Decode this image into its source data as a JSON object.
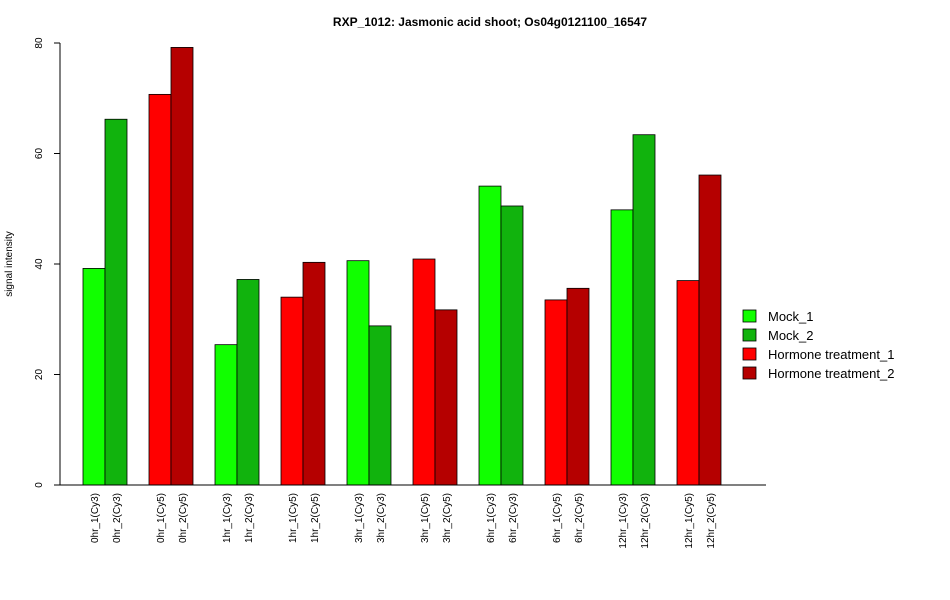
{
  "chart_data": {
    "type": "bar",
    "title": "RXP_1012: Jasmonic acid shoot; Os04g0121100_16547",
    "xlabel": "",
    "ylabel": "signal intensity",
    "ylim": [
      0,
      80
    ],
    "yticks": [
      0,
      20,
      40,
      60,
      80
    ],
    "categories": [
      "0hr_1(Cy3)",
      "0hr_2(Cy3)",
      "0hr_1(Cy5)",
      "0hr_2(Cy5)",
      "1hr_1(Cy3)",
      "1hr_2(Cy3)",
      "1hr_1(Cy5)",
      "1hr_2(Cy5)",
      "3hr_1(Cy3)",
      "3hr_2(Cy3)",
      "3hr_1(Cy5)",
      "3hr_2(Cy5)",
      "6hr_1(Cy3)",
      "6hr_2(Cy3)",
      "6hr_1(Cy5)",
      "6hr_2(Cy5)",
      "12hr_1(Cy3)",
      "12hr_2(Cy3)",
      "12hr_1(Cy5)",
      "12hr_2(Cy5)"
    ],
    "values": [
      39.2,
      66.2,
      70.7,
      79.2,
      25.4,
      37.2,
      34.0,
      40.3,
      40.6,
      28.8,
      40.9,
      31.7,
      54.1,
      50.5,
      33.5,
      35.6,
      49.8,
      63.4,
      37.0,
      56.1
    ],
    "bar_series": [
      0,
      1,
      2,
      3,
      0,
      1,
      2,
      3,
      0,
      1,
      2,
      3,
      0,
      1,
      2,
      3,
      0,
      1,
      2,
      3
    ],
    "series": [
      {
        "name": "Mock_1",
        "color": "#11ff00"
      },
      {
        "name": "Mock_2",
        "color": "#11b30d"
      },
      {
        "name": "Hormone treatment_1",
        "color": "#ff0000"
      },
      {
        "name": "Hormone treatment_2",
        "color": "#b50000"
      }
    ],
    "legend_position": "right",
    "grid": false
  }
}
